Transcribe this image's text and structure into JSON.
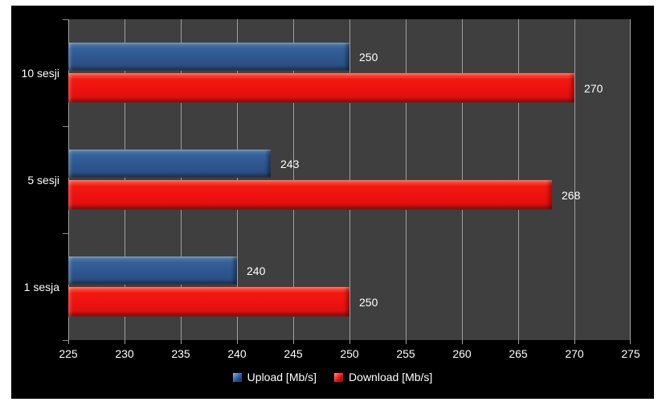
{
  "chart_data": {
    "type": "bar",
    "orientation": "horizontal",
    "title": "",
    "xlabel": "",
    "ylabel": "",
    "categories": [
      "10 sesji",
      "5 sesji",
      "1 sesja"
    ],
    "series": [
      {
        "name": "Upload [Mb/s]",
        "color": "#2e568f",
        "values": [
          250,
          243,
          240
        ]
      },
      {
        "name": "Download [Mb/s]",
        "color": "#ee1111",
        "values": [
          270,
          268,
          250
        ]
      }
    ],
    "data_labels": [
      {
        "series": "Upload [Mb/s]",
        "labels": [
          "250",
          "243",
          "240"
        ]
      },
      {
        "series": "Download [Mb/s]",
        "labels": [
          "270",
          "268",
          "250"
        ]
      }
    ],
    "xlim": [
      225,
      275
    ],
    "x_ticks": [
      225,
      230,
      235,
      240,
      245,
      250,
      255,
      260,
      265,
      270,
      275
    ],
    "grid": true,
    "legend_position": "bottom"
  },
  "colors": {
    "page_bg": "#ffffff",
    "chart_bg": "#000000",
    "plot_bg": "#3f3f3f",
    "gridline": "#9f9f9f",
    "text": "#ffffff",
    "series_upload": "#2e568f",
    "series_download": "#ee1111"
  }
}
